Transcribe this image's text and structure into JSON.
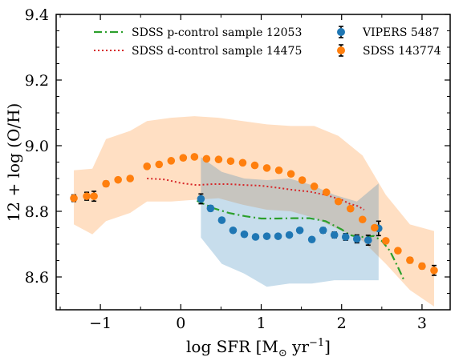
{
  "chart_data": {
    "type": "scatter",
    "xlabel": "log SFR [M",
    "xlabel_sub": "⊙",
    "xlabel_tail": " yr",
    "xlabel_sup": "−1",
    "xlabel_end": "]",
    "ylabel": "12 + log (O/H)",
    "xlim": [
      -1.55,
      3.35
    ],
    "ylim": [
      8.5,
      9.4
    ],
    "xticks": [
      -1,
      0,
      1,
      2,
      3
    ],
    "xtick_labels": [
      "−1",
      "0",
      "1",
      "2",
      "3"
    ],
    "yticks": [
      8.6,
      8.8,
      9.0,
      9.2,
      9.4
    ],
    "ytick_labels": [
      "8.6",
      "8.8",
      "9.0",
      "9.2",
      "9.4"
    ],
    "legend_position": "top",
    "colors": {
      "vipers": "#1f77b4",
      "sdss": "#ff7f0e",
      "p_control": "#2ca02c",
      "d_control": "#d62728"
    },
    "series": [
      {
        "name": "VIPERS 5487",
        "kind": "errorbar",
        "color": "#1f77b4",
        "x": [
          0.25,
          0.37,
          0.51,
          0.65,
          0.79,
          0.93,
          1.07,
          1.21,
          1.35,
          1.48,
          1.63,
          1.77,
          1.91,
          2.05,
          2.19,
          2.33,
          2.46
        ],
        "y": [
          8.838,
          8.809,
          8.773,
          8.742,
          8.73,
          8.722,
          8.724,
          8.724,
          8.728,
          8.742,
          8.714,
          8.742,
          8.728,
          8.722,
          8.716,
          8.712,
          8.748
        ],
        "err": [
          0.015,
          0.008,
          0.006,
          0.005,
          0.005,
          0.005,
          0.005,
          0.005,
          0.005,
          0.006,
          0.007,
          0.008,
          0.009,
          0.01,
          0.012,
          0.015,
          0.022
        ]
      },
      {
        "name": "SDSS 143774",
        "kind": "errorbar",
        "color": "#ff7f0e",
        "x": [
          -1.33,
          -1.17,
          -1.08,
          -0.93,
          -0.78,
          -0.63,
          -0.42,
          -0.27,
          -0.12,
          0.03,
          0.17,
          0.32,
          0.47,
          0.62,
          0.77,
          0.92,
          1.07,
          1.22,
          1.37,
          1.51,
          1.66,
          1.81,
          1.96,
          2.11,
          2.26,
          2.41,
          2.55,
          2.7,
          2.85,
          3.0,
          3.15
        ],
        "y": [
          8.84,
          8.846,
          8.846,
          8.884,
          8.896,
          8.9,
          8.937,
          8.943,
          8.954,
          8.963,
          8.966,
          8.96,
          8.958,
          8.953,
          8.948,
          8.94,
          8.932,
          8.925,
          8.914,
          8.895,
          8.876,
          8.858,
          8.83,
          8.808,
          8.775,
          8.75,
          8.71,
          8.68,
          8.651,
          8.633,
          8.62
        ],
        "err": [
          0.01,
          0.012,
          0.015,
          0.008,
          0.006,
          0.005,
          0.004,
          0.003,
          0.003,
          0.002,
          0.002,
          0.002,
          0.002,
          0.002,
          0.002,
          0.002,
          0.002,
          0.002,
          0.002,
          0.002,
          0.002,
          0.003,
          0.003,
          0.003,
          0.004,
          0.005,
          0.006,
          0.006,
          0.008,
          0.008,
          0.015
        ]
      },
      {
        "name": "SDSS p-control sample 12053",
        "kind": "line",
        "style": "dashdot",
        "color": "#2ca02c",
        "x": [
          0.2,
          0.4,
          0.6,
          0.8,
          1.0,
          1.2,
          1.4,
          1.6,
          1.8,
          2.0,
          2.1,
          2.2,
          2.3,
          2.4,
          2.5,
          2.6,
          2.7,
          2.78
        ],
        "y": [
          8.832,
          8.81,
          8.795,
          8.785,
          8.778,
          8.778,
          8.779,
          8.779,
          8.77,
          8.745,
          8.728,
          8.722,
          8.722,
          8.725,
          8.71,
          8.68,
          8.63,
          8.588
        ]
      },
      {
        "name": "SDSS d-control sample 14475",
        "kind": "line",
        "style": "dotted",
        "color": "#d62728",
        "x": [
          -0.42,
          -0.2,
          0.0,
          0.2,
          0.4,
          0.6,
          0.8,
          1.0,
          1.2,
          1.4,
          1.6,
          1.8,
          2.0,
          2.1,
          2.2,
          2.28
        ],
        "y": [
          8.9,
          8.897,
          8.886,
          8.88,
          8.883,
          8.883,
          8.88,
          8.878,
          8.872,
          8.865,
          8.86,
          8.85,
          8.835,
          8.823,
          8.816,
          8.805
        ]
      }
    ],
    "bands": [
      {
        "of": "SDSS 143774",
        "color": "#ff7f0e",
        "x": [
          -1.33,
          -1.1,
          -0.93,
          -0.63,
          -0.42,
          -0.12,
          0.17,
          0.47,
          0.77,
          1.07,
          1.37,
          1.66,
          1.96,
          2.26,
          2.55,
          2.85,
          3.15
        ],
        "upper": [
          8.925,
          8.93,
          9.02,
          9.045,
          9.075,
          9.085,
          9.09,
          9.085,
          9.075,
          9.065,
          9.06,
          9.06,
          9.03,
          8.97,
          8.85,
          8.76,
          8.74
        ],
        "lower": [
          8.76,
          8.73,
          8.77,
          8.795,
          8.83,
          8.83,
          8.835,
          8.84,
          8.82,
          8.805,
          8.8,
          8.78,
          8.745,
          8.71,
          8.64,
          8.56,
          8.51
        ]
      },
      {
        "of": "VIPERS 5487",
        "color": "#1f77b4",
        "x": [
          0.25,
          0.51,
          0.79,
          1.07,
          1.35,
          1.63,
          1.91,
          2.19,
          2.46
        ],
        "upper": [
          8.965,
          8.92,
          8.9,
          8.895,
          8.9,
          8.88,
          8.85,
          8.83,
          8.885
        ],
        "lower": [
          8.72,
          8.64,
          8.61,
          8.57,
          8.58,
          8.58,
          8.59,
          8.59,
          8.59
        ]
      }
    ]
  }
}
